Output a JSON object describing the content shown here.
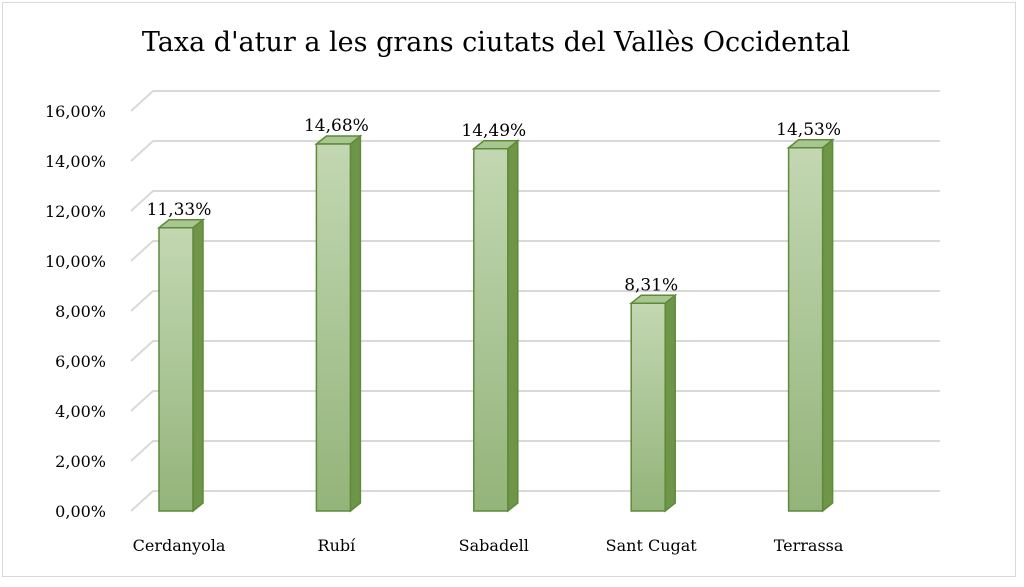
{
  "chart_data": {
    "type": "bar",
    "title": "Taxa d'atur a les grans ciutats del Vallès Occidental",
    "xlabel": "",
    "ylabel": "",
    "categories": [
      "Cerdanyola",
      "Rubí",
      "Sabadell",
      "Sant Cugat",
      "Terrassa"
    ],
    "values": [
      11.33,
      14.68,
      14.49,
      8.31,
      14.53
    ],
    "data_labels": [
      "11,33%",
      "14,68%",
      "14,49%",
      "8,31%",
      "14,53%"
    ],
    "ylim": [
      0,
      16
    ],
    "y_ticks": [
      0,
      2,
      4,
      6,
      8,
      10,
      12,
      14,
      16
    ],
    "y_tick_labels": [
      "0,00%",
      "2,00%",
      "4,00%",
      "6,00%",
      "8,00%",
      "10,00%",
      "12,00%",
      "14,00%",
      "16,00%"
    ],
    "grid": true,
    "legend": "none",
    "style": "3d-column",
    "colors": {
      "bar_top": "#c3d7b2",
      "bar_bottom": "#93b47a",
      "bar_outline": "#5e8a3a",
      "bar_side": "#6e9548",
      "bar_cap": "#a8c690",
      "grid": "#d9d9d9"
    }
  }
}
